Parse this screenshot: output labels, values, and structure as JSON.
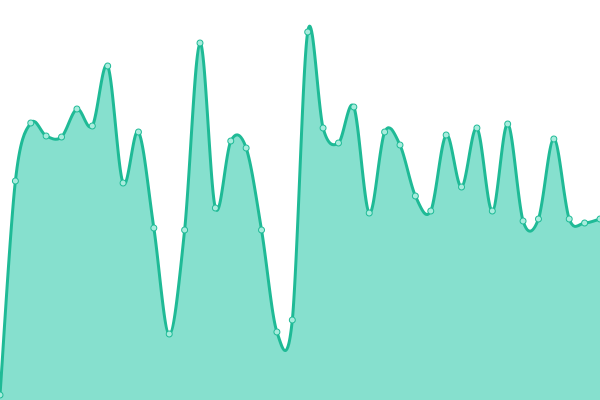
{
  "chart_data": {
    "type": "area",
    "x": [
      0,
      1,
      2,
      3,
      4,
      5,
      6,
      7,
      8,
      9,
      10,
      11,
      12,
      13,
      14,
      15,
      16,
      17,
      18,
      19,
      20,
      21,
      22,
      23,
      24,
      25,
      26,
      27,
      28,
      29,
      30,
      31,
      32,
      33,
      34,
      35,
      36,
      37,
      38,
      39
    ],
    "values": [
      5,
      219,
      277,
      264,
      263,
      291,
      274,
      334,
      217,
      268,
      172,
      66,
      170,
      357,
      192,
      259,
      252,
      170,
      68,
      80,
      368,
      272,
      257,
      293,
      187,
      268,
      255,
      204,
      189,
      265,
      213,
      272,
      189,
      276,
      179,
      181,
      261,
      181,
      177,
      181
    ],
    "xlim": [
      0,
      39
    ],
    "ylim": [
      0,
      400
    ],
    "fill_color": "#86e0ce",
    "line_color": "#1fba96",
    "marker_fill": "#a8ecdd"
  }
}
